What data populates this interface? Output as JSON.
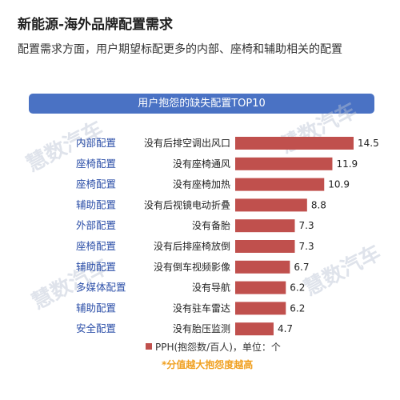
{
  "title": "新能源-海外品牌配置需求",
  "subtitle": "配置需求方面，用户期望标配更多的内部、座椅和辅助相关的配置",
  "watermark": "慧数汽车",
  "colors": {
    "bar": "#c0504d",
    "banner": "#4a72c4",
    "category_text": "#2c4fa8",
    "note": "#f0a020"
  },
  "chart_data": {
    "type": "bar",
    "orientation": "horizontal",
    "title": "用户抱怨的缺失配置TOP10",
    "categories": [
      "没有后排空调出风口",
      "没有座椅通风",
      "没有座椅加热",
      "没有后视镜电动折叠",
      "没有备胎",
      "没有后排座椅放倒",
      "没有倒车视频影像",
      "没有导航",
      "没有驻车雷达",
      "没有胎压监测"
    ],
    "groups": [
      "内部配置",
      "座椅配置",
      "座椅配置",
      "辅助配置",
      "外部配置",
      "座椅配置",
      "辅助配置",
      "多媒体配置",
      "辅助配置",
      "安全配置"
    ],
    "series": [
      {
        "name": "PPH(抱怨数/百人)，单位：个",
        "values": [
          14.5,
          11.9,
          10.9,
          8.8,
          7.3,
          7.3,
          6.7,
          6.2,
          6.2,
          4.7
        ]
      }
    ],
    "xlim": [
      0,
      14.5
    ],
    "note": "*分值越大抱怨度越高"
  }
}
